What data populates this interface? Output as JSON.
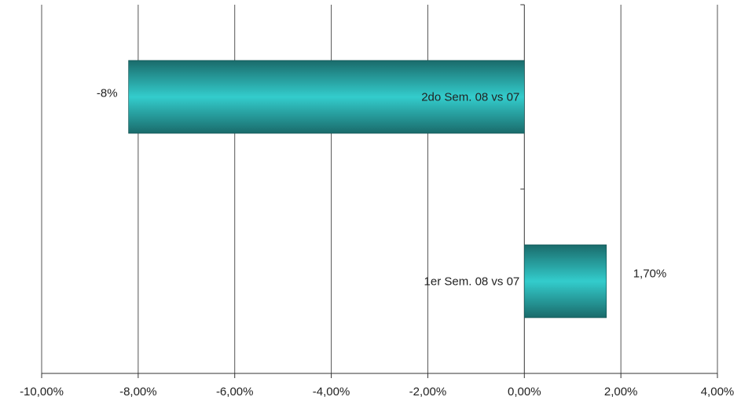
{
  "chart_data": {
    "type": "bar",
    "orientation": "horizontal",
    "title": "",
    "xlabel": "",
    "ylabel": "",
    "xlim": [
      -0.1,
      0.04
    ],
    "x_ticks": [
      -0.1,
      -0.08,
      -0.06,
      -0.04,
      -0.02,
      0.0,
      0.02,
      0.04
    ],
    "x_tick_labels": [
      "-10,00%",
      "-8,00%",
      "-6,00%",
      "-4,00%",
      "-2,00%",
      "0,00%",
      "2,00%",
      "4,00%"
    ],
    "grid": "vertical",
    "legend": "none",
    "categories": [
      "2do Sem. 08 vs 07",
      "1er Sem. 08 vs 07"
    ],
    "values": [
      -0.082,
      0.017
    ],
    "data_labels": [
      "-8%",
      "1,70%"
    ],
    "colors": {
      "bar_light": "#33cccc",
      "bar_dark": "#1a6b6b",
      "grid": "#555555",
      "axis": "#333333",
      "text": "#222222"
    }
  }
}
